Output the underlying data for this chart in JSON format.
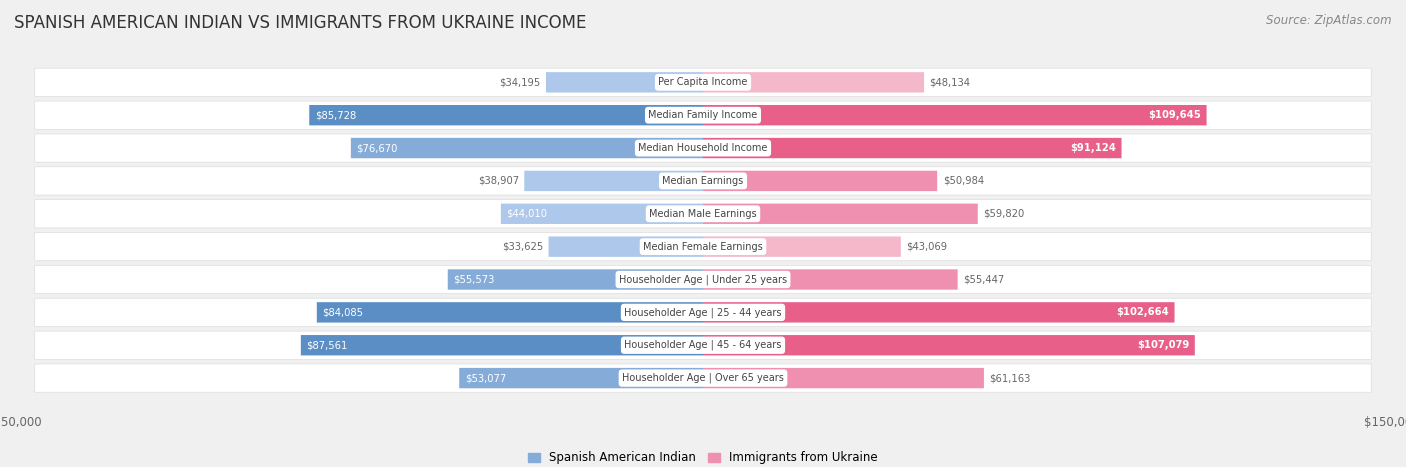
{
  "title": "SPANISH AMERICAN INDIAN VS IMMIGRANTS FROM UKRAINE INCOME",
  "source": "Source: ZipAtlas.com",
  "categories": [
    "Per Capita Income",
    "Median Family Income",
    "Median Household Income",
    "Median Earnings",
    "Median Male Earnings",
    "Median Female Earnings",
    "Householder Age | Under 25 years",
    "Householder Age | 25 - 44 years",
    "Householder Age | 45 - 64 years",
    "Householder Age | Over 65 years"
  ],
  "left_values": [
    34195,
    85728,
    76670,
    38907,
    44010,
    33625,
    55573,
    84085,
    87561,
    53077
  ],
  "right_values": [
    48134,
    109645,
    91124,
    50984,
    59820,
    43069,
    55447,
    102664,
    107079,
    61163
  ],
  "left_labels": [
    "$34,195",
    "$85,728",
    "$76,670",
    "$38,907",
    "$44,010",
    "$33,625",
    "$55,573",
    "$84,085",
    "$87,561",
    "$53,077"
  ],
  "right_labels": [
    "$48,134",
    "$109,645",
    "$91,124",
    "$50,984",
    "$59,820",
    "$43,069",
    "$55,447",
    "$102,664",
    "$107,079",
    "$61,163"
  ],
  "left_color_light": "#adc8eb",
  "left_color_mid": "#85acd8",
  "left_color_strong": "#5a8ec4",
  "right_color_light": "#f5b8ca",
  "right_color_mid": "#f090b0",
  "right_color_strong": "#e8608a",
  "max_value": 150000,
  "legend_left": "Spanish American Indian",
  "legend_right": "Immigrants from Ukraine",
  "bg_color": "#f0f0f0",
  "row_bg_color": "#ffffff",
  "title_fontsize": 12,
  "source_fontsize": 8.5,
  "bar_height": 0.62
}
